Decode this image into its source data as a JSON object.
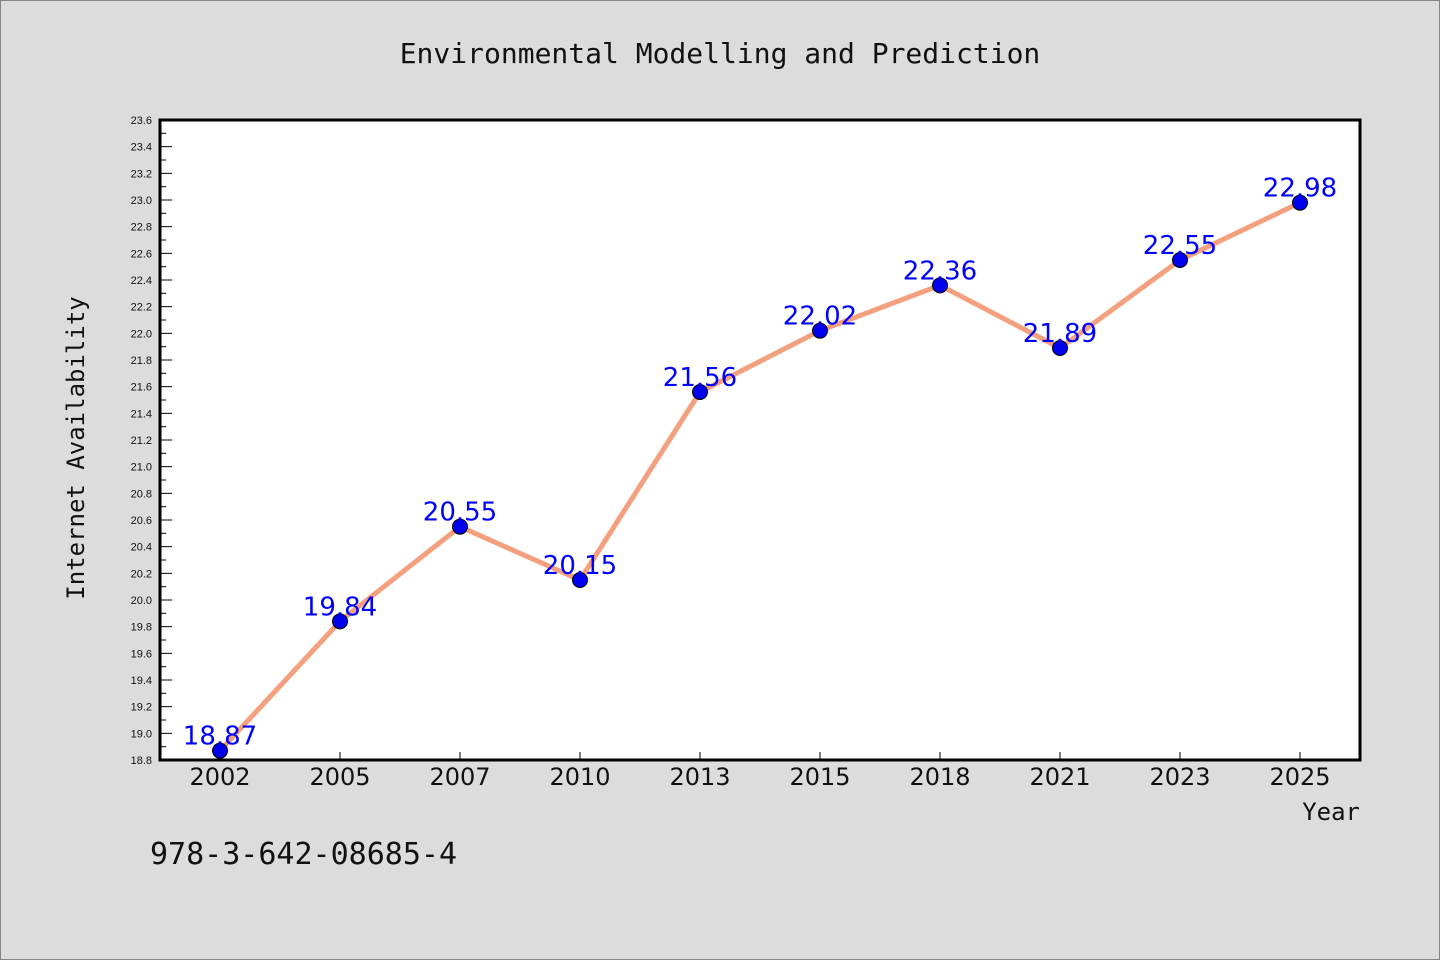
{
  "chart_data": {
    "type": "line",
    "title": "Environmental Modelling and Prediction",
    "xlabel": "Year",
    "ylabel": "Internet Availability",
    "categories": [
      "2002",
      "2005",
      "2007",
      "2010",
      "2013",
      "2015",
      "2018",
      "2021",
      "2023",
      "2025"
    ],
    "values": [
      18.87,
      19.84,
      20.55,
      20.15,
      21.56,
      22.02,
      22.36,
      21.89,
      22.55,
      22.98
    ],
    "data_labels": [
      "18.87",
      "19.84",
      "20.55",
      "20.15",
      "21.56",
      "22.02",
      "22.36",
      "21.89",
      "22.55",
      "22.98"
    ],
    "ylim": [
      18.8,
      23.6
    ],
    "yticks": [
      "18.8",
      "19.0",
      "19.2",
      "19.4",
      "19.6",
      "19.8",
      "20.0",
      "20.2",
      "20.4",
      "20.6",
      "20.8",
      "21.0",
      "21.2",
      "21.4",
      "21.6",
      "21.8",
      "22.0",
      "22.2",
      "22.4",
      "22.6",
      "22.8",
      "23.0",
      "23.2",
      "23.4",
      "23.6"
    ],
    "grid": false,
    "line_color": "#f4a07e",
    "marker_color": "#0000ee",
    "label_color": "#0000ff"
  },
  "footnote": "978-3-642-08685-4"
}
